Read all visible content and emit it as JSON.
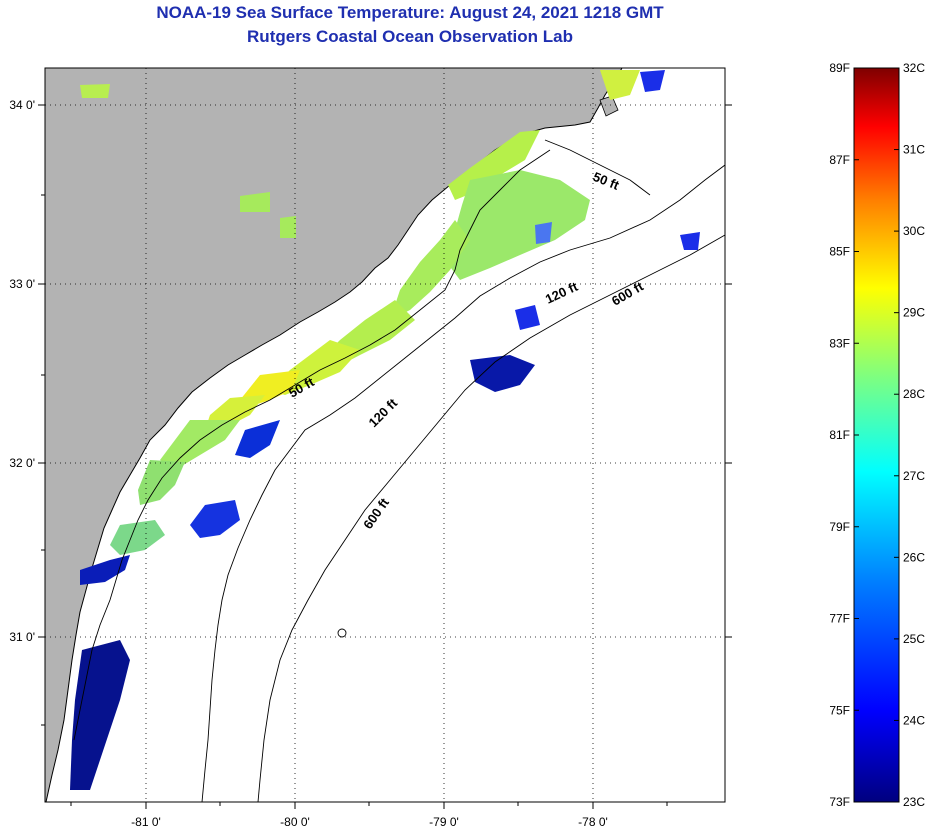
{
  "title": {
    "line1": "NOAA-19 Sea Surface Temperature:  August 24, 2021 1218 GMT",
    "line2": "Rutgers Coastal Ocean Observation Lab"
  },
  "map": {
    "lon_ticks": [
      "-81 0'",
      "-80 0'",
      "-79 0'",
      "-78 0'"
    ],
    "lat_ticks": [
      "34 0'",
      "33 0'",
      "32 0'",
      "31 0'"
    ],
    "contour_labels": {
      "c50_north": "50 ft",
      "c50_south": "50 ft",
      "c120_north": "120 ft",
      "c120_south": "120 ft",
      "c600_north": "600 ft",
      "c600_south": "600 ft"
    },
    "colors": {
      "land": "#b3b3b3",
      "ocean_no_data": "#ffffff"
    }
  },
  "colorbar": {
    "fahrenheit": [
      "89F",
      "87F",
      "85F",
      "83F",
      "81F",
      "79F",
      "77F",
      "75F",
      "73F"
    ],
    "celsius": [
      "32C",
      "31C",
      "30C",
      "29C",
      "28C",
      "27C",
      "26C",
      "25C",
      "24C",
      "23C"
    ],
    "colors": [
      "#00007f",
      "#0000ff",
      "#007fff",
      "#00ffff",
      "#7fff7f",
      "#ffff00",
      "#ff7f00",
      "#ff0000",
      "#7f0000"
    ]
  }
}
